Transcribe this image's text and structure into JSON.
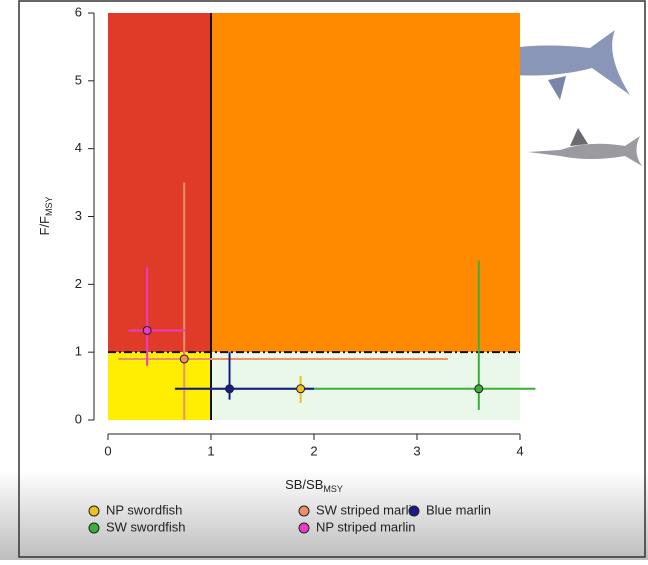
{
  "chart_data": {
    "type": "kobe",
    "xlabel": {
      "text": "SB/SB",
      "sub": "MSY"
    },
    "ylabel": {
      "text": "F/F",
      "sub": "MSY"
    },
    "xlim": [
      0,
      4
    ],
    "ylim": [
      0,
      6
    ],
    "xticks": [
      0,
      1,
      2,
      3,
      4
    ],
    "yticks": [
      0,
      1,
      2,
      3,
      4,
      5,
      6
    ],
    "reference_lines": {
      "x": 1,
      "y": 1
    },
    "quadrant_colors": {
      "upper_left": "#e03a28",
      "upper_right": "#ff8a00",
      "lower_left": "#ffee00",
      "lower_right": "#eaf8ea"
    },
    "series": [
      {
        "name": "NP swordfish",
        "color": "#f0c020",
        "x": 1.87,
        "y": 0.46,
        "xlow": 1.8,
        "xhigh": 1.95,
        "ylow": 0.25,
        "yhigh": 0.65
      },
      {
        "name": "SW swordfish",
        "color": "#3cae3c",
        "x": 3.6,
        "y": 0.46,
        "xlow": 0.65,
        "xhigh": 4.15,
        "ylow": 0.15,
        "yhigh": 2.35
      },
      {
        "name": "SW striped marlin",
        "color": "#f0906a",
        "x": 0.74,
        "y": 0.9,
        "xlow": 0.1,
        "xhigh": 3.3,
        "ylow": 0,
        "yhigh": 3.5
      },
      {
        "name": "NP striped marlin",
        "color": "#e83cc8",
        "x": 0.38,
        "y": 1.32,
        "xlow": 0.2,
        "xhigh": 0.75,
        "ylow": 0.8,
        "yhigh": 2.25
      },
      {
        "name": "Blue marlin",
        "color": "#1a1a8c",
        "x": 1.18,
        "y": 0.46,
        "xlow": 0.65,
        "xhigh": 2.0,
        "ylow": 0.3,
        "yhigh": 1.0
      }
    ]
  }
}
